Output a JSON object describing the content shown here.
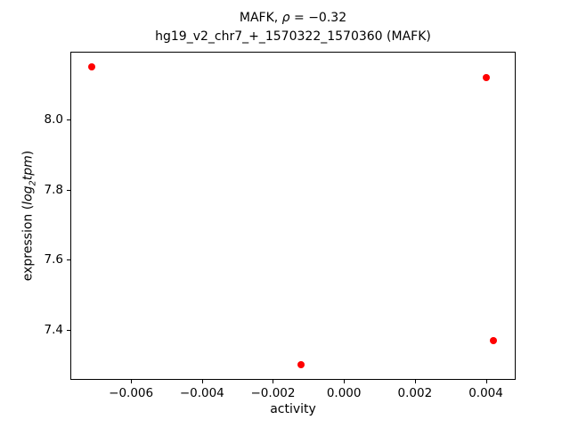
{
  "figure": {
    "background": "#ffffff",
    "frame_color": "#000000"
  },
  "title": {
    "line1": {
      "prefix": "MAFK, ",
      "rho": "ρ",
      "suffix": " = −0.32"
    },
    "line2": "hg19_v2_chr7_+_1570322_1570360 (MAFK)"
  },
  "axes": {
    "x": {
      "label": "activity",
      "tick_labels": [
        "−0.006",
        "−0.004",
        "−0.002",
        "0.000",
        "0.002",
        "0.004"
      ]
    },
    "y": {
      "label": {
        "prefix": "expression (",
        "log": "log",
        "subscript": "2",
        "tpm": "tpm",
        "suffix": ")"
      },
      "tick_labels": [
        "7.4",
        "7.6",
        "7.8",
        "8.0"
      ]
    }
  },
  "chart_data": {
    "type": "scatter",
    "title": "MAFK, ρ = −0.32",
    "subtitle": "hg19_v2_chr7_+_1570322_1570360 (MAFK)",
    "xlabel": "activity",
    "ylabel": "expression (log2 tpm)",
    "points": [
      {
        "x": -0.0071,
        "y": 8.15
      },
      {
        "x": 0.004,
        "y": 8.12
      },
      {
        "x": -0.0012,
        "y": 7.3
      },
      {
        "x": 0.0042,
        "y": 7.37
      }
    ],
    "xticks": [
      -0.006,
      -0.004,
      -0.002,
      0.0,
      0.002,
      0.004
    ],
    "yticks": [
      7.4,
      7.6,
      7.8,
      8.0
    ],
    "xlim": [
      -0.00771,
      0.00484
    ],
    "ylim": [
      7.257,
      8.194
    ],
    "marker_color": "#ff0000",
    "marker_diameter_px": 8,
    "grid": false,
    "legend": null
  }
}
